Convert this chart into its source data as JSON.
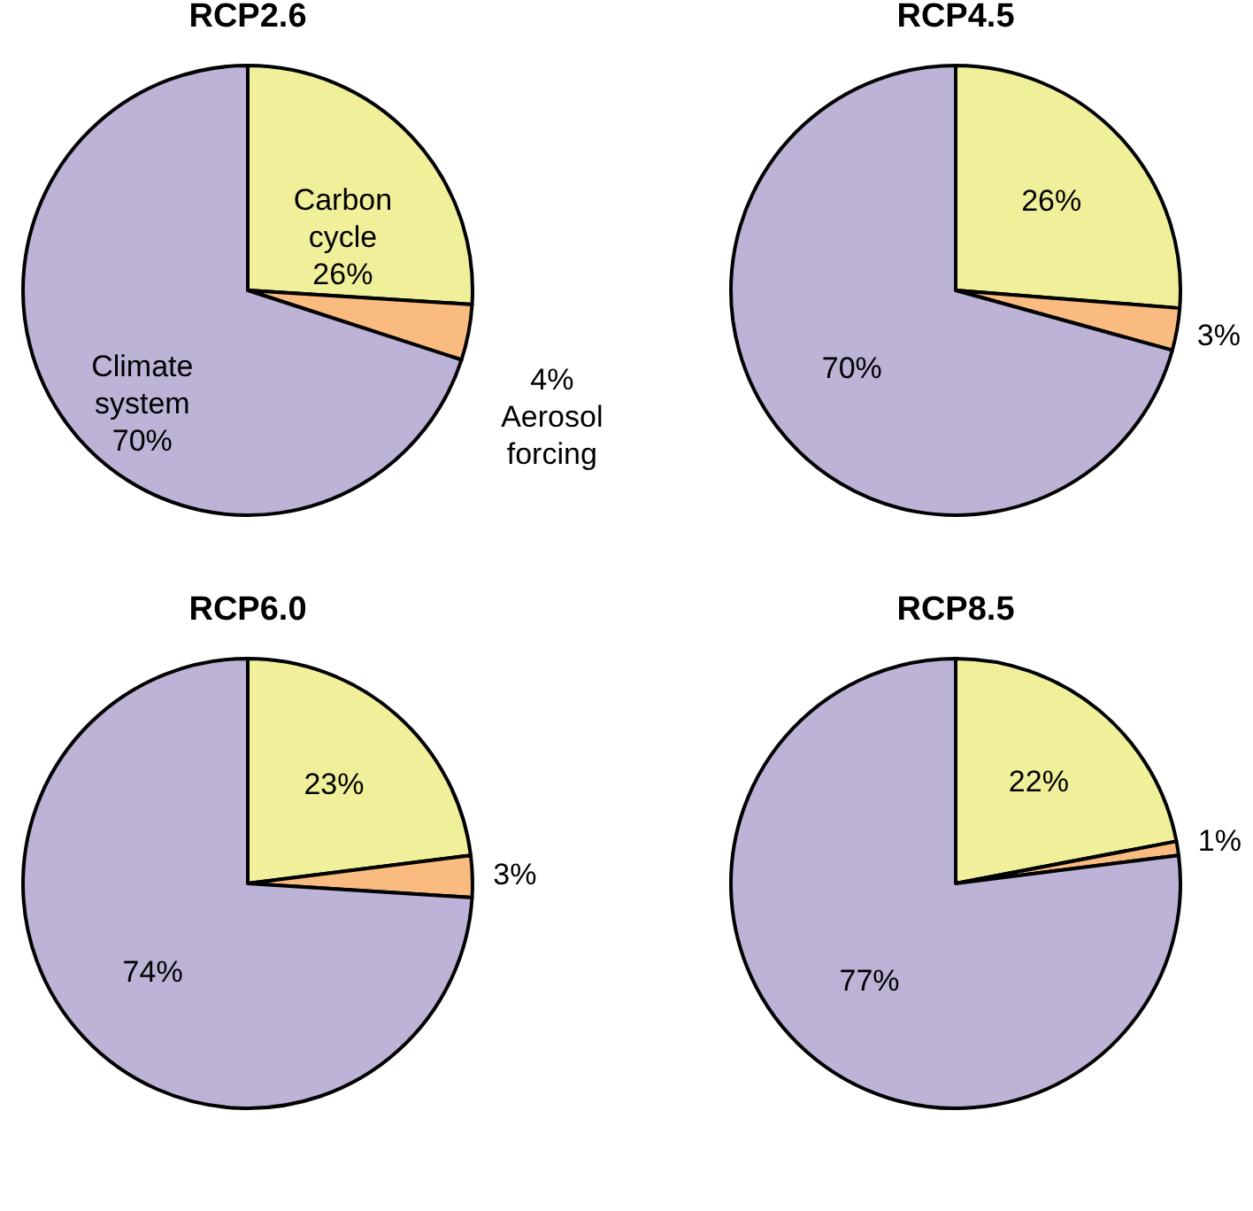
{
  "chart_data": [
    {
      "type": "pie",
      "title": "RCP2.6",
      "categories": [
        "Carbon cycle",
        "Aerosol forcing",
        "Climate system"
      ],
      "values": [
        26,
        4,
        70
      ],
      "value_labels": [
        "26%",
        "4%",
        "70%"
      ],
      "colors": [
        "#f0f09a",
        "#f9bb80",
        "#bcb3d7"
      ]
    },
    {
      "type": "pie",
      "title": "RCP4.5",
      "categories": [
        null,
        null,
        null
      ],
      "values": [
        26,
        3,
        70
      ],
      "value_labels": [
        "26%",
        "3%",
        "70%"
      ],
      "colors": [
        "#f0f09a",
        "#f9bb80",
        "#bcb3d7"
      ]
    },
    {
      "type": "pie",
      "title": "RCP6.0",
      "categories": [
        null,
        null,
        null
      ],
      "values": [
        23,
        3,
        74
      ],
      "value_labels": [
        "23%",
        "3%",
        "74%"
      ],
      "colors": [
        "#f0f09a",
        "#f9bb80",
        "#bcb3d7"
      ]
    },
    {
      "type": "pie",
      "title": "RCP8.5",
      "categories": [
        null,
        null,
        null
      ],
      "values": [
        22,
        1,
        77
      ],
      "value_labels": [
        "22%",
        "1%",
        "77%"
      ],
      "colors": [
        "#f0f09a",
        "#f9bb80",
        "#bcb3d7"
      ]
    }
  ]
}
